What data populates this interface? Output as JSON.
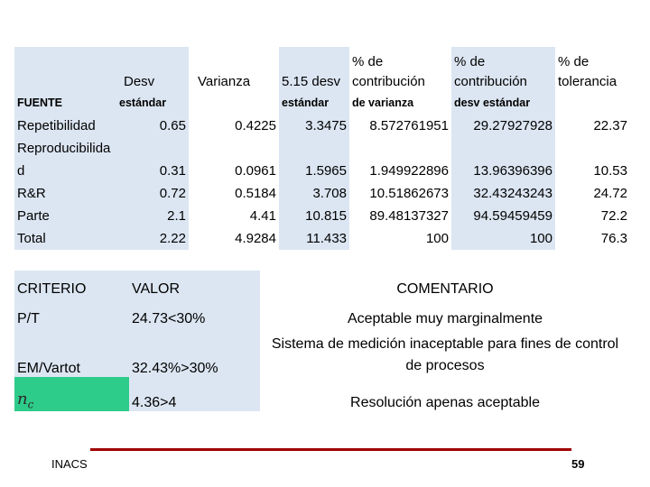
{
  "gage_table": {
    "header_row1": [
      "",
      "Desv",
      "Varianza",
      "5.15 desv",
      "% de contribución",
      "% de contribución",
      "% de tolerancia"
    ],
    "header_row2": [
      "FUENTE",
      "estándar",
      "",
      "estándar",
      "de varianza",
      "desv estándar",
      ""
    ],
    "rows": [
      {
        "source": "Repetibilidad",
        "std": "0.65",
        "var": "0.4225",
        "desv515": "3.3475",
        "pct_var": "8.572761951",
        "pct_std": "29.27927928",
        "pct_tol": "22.37"
      },
      {
        "source": "Reproducibilidad",
        "std": "0.31",
        "var": "0.0961",
        "desv515": "1.5965",
        "pct_var": "1.949922896",
        "pct_std": "13.96396396",
        "pct_tol": "10.53"
      },
      {
        "source": "R&R",
        "std": "0.72",
        "var": "0.5184",
        "desv515": "3.708",
        "pct_var": "10.51862673",
        "pct_std": "32.43243243",
        "pct_tol": "24.72"
      },
      {
        "source": "Parte",
        "std": "2.1",
        "var": "4.41",
        "desv515": "10.815",
        "pct_var": "89.48137327",
        "pct_std": "94.59459459",
        "pct_tol": "72.2"
      },
      {
        "source": "Total",
        "std": "2.22",
        "var": "4.9284",
        "desv515": "11.433",
        "pct_var": "100",
        "pct_std": "100",
        "pct_tol": "76.3"
      }
    ]
  },
  "criteria_table": {
    "headers": {
      "criterio": "CRITERIO",
      "valor": "VALOR",
      "comentario": "COMENTARIO"
    },
    "rows": [
      {
        "criterio": "P/T",
        "valor": "24.73<30%",
        "comentario": "Aceptable muy marginalmente"
      },
      {
        "criterio": "EM/Vartot",
        "valor": "32.43%>30%",
        "comentario": "Sistema de medición  inaceptable para fines de control de procesos"
      },
      {
        "criterio": "nc",
        "valor": "4.36>4",
        "comentario": "Resolución apenas aceptable"
      }
    ]
  },
  "footer": {
    "left": "INACS",
    "page": "59"
  },
  "colors": {
    "shade": "#dce6f2",
    "green": "#2ecc8a",
    "rule": "#a00000"
  }
}
